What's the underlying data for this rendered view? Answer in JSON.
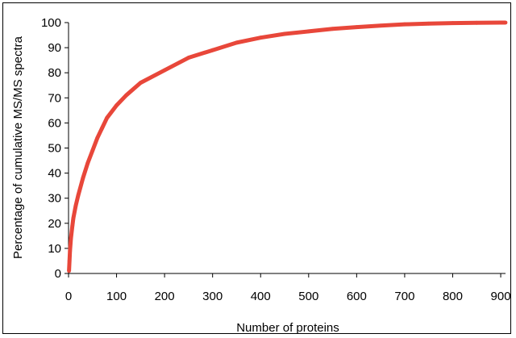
{
  "chart_data": {
    "type": "line",
    "title": "",
    "xlabel": "Number of proteins",
    "ylabel": "Percentage of cumulative MS/MS spectra",
    "xlim": [
      0,
      910
    ],
    "ylim": [
      0,
      100
    ],
    "x_ticks": [
      "0",
      "100",
      "200",
      "300",
      "400",
      "500",
      "600",
      "700",
      "800",
      "900"
    ],
    "y_ticks": [
      "0",
      "10",
      "20",
      "30",
      "40",
      "50",
      "60",
      "70",
      "80",
      "90",
      "100"
    ],
    "grid": false,
    "legend": "none",
    "series": [
      {
        "color": "#e8473a",
        "x": [
          1,
          2,
          3,
          5,
          8,
          10,
          15,
          20,
          30,
          40,
          50,
          60,
          70,
          80,
          100,
          120,
          150,
          200,
          250,
          300,
          350,
          400,
          450,
          500,
          550,
          600,
          650,
          700,
          750,
          800,
          850,
          900,
          910
        ],
        "y": [
          1,
          5,
          9,
          14,
          19,
          22,
          27,
          31,
          38,
          44,
          49,
          54,
          58,
          62,
          67,
          71,
          76,
          81,
          86,
          89,
          92,
          94,
          95.5,
          96.5,
          97.5,
          98.2,
          98.8,
          99.3,
          99.6,
          99.8,
          99.9,
          100,
          100
        ]
      }
    ]
  }
}
